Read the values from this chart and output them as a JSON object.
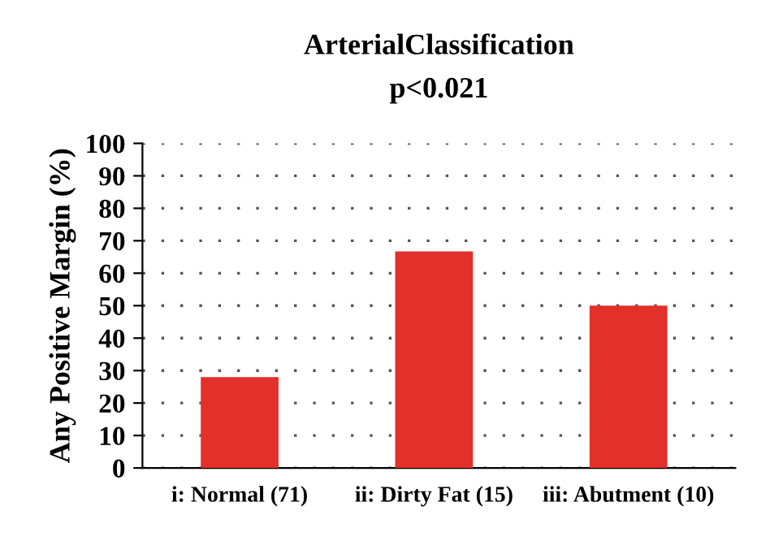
{
  "chart_data": {
    "type": "bar",
    "title": "ArterialClassification",
    "subtitle": "p<0.021",
    "ylabel": "Any Positive Margin (%)",
    "categories": [
      "i: Normal (71)",
      "ii: Dirty Fat (15)",
      "iii: Abutment (10)"
    ],
    "values": [
      28,
      66.7,
      50
    ],
    "color": "#e3302a",
    "ylim": [
      0,
      100
    ],
    "yticks": [
      0,
      10,
      20,
      30,
      40,
      50,
      60,
      70,
      80,
      90,
      100
    ],
    "grid": "y"
  }
}
